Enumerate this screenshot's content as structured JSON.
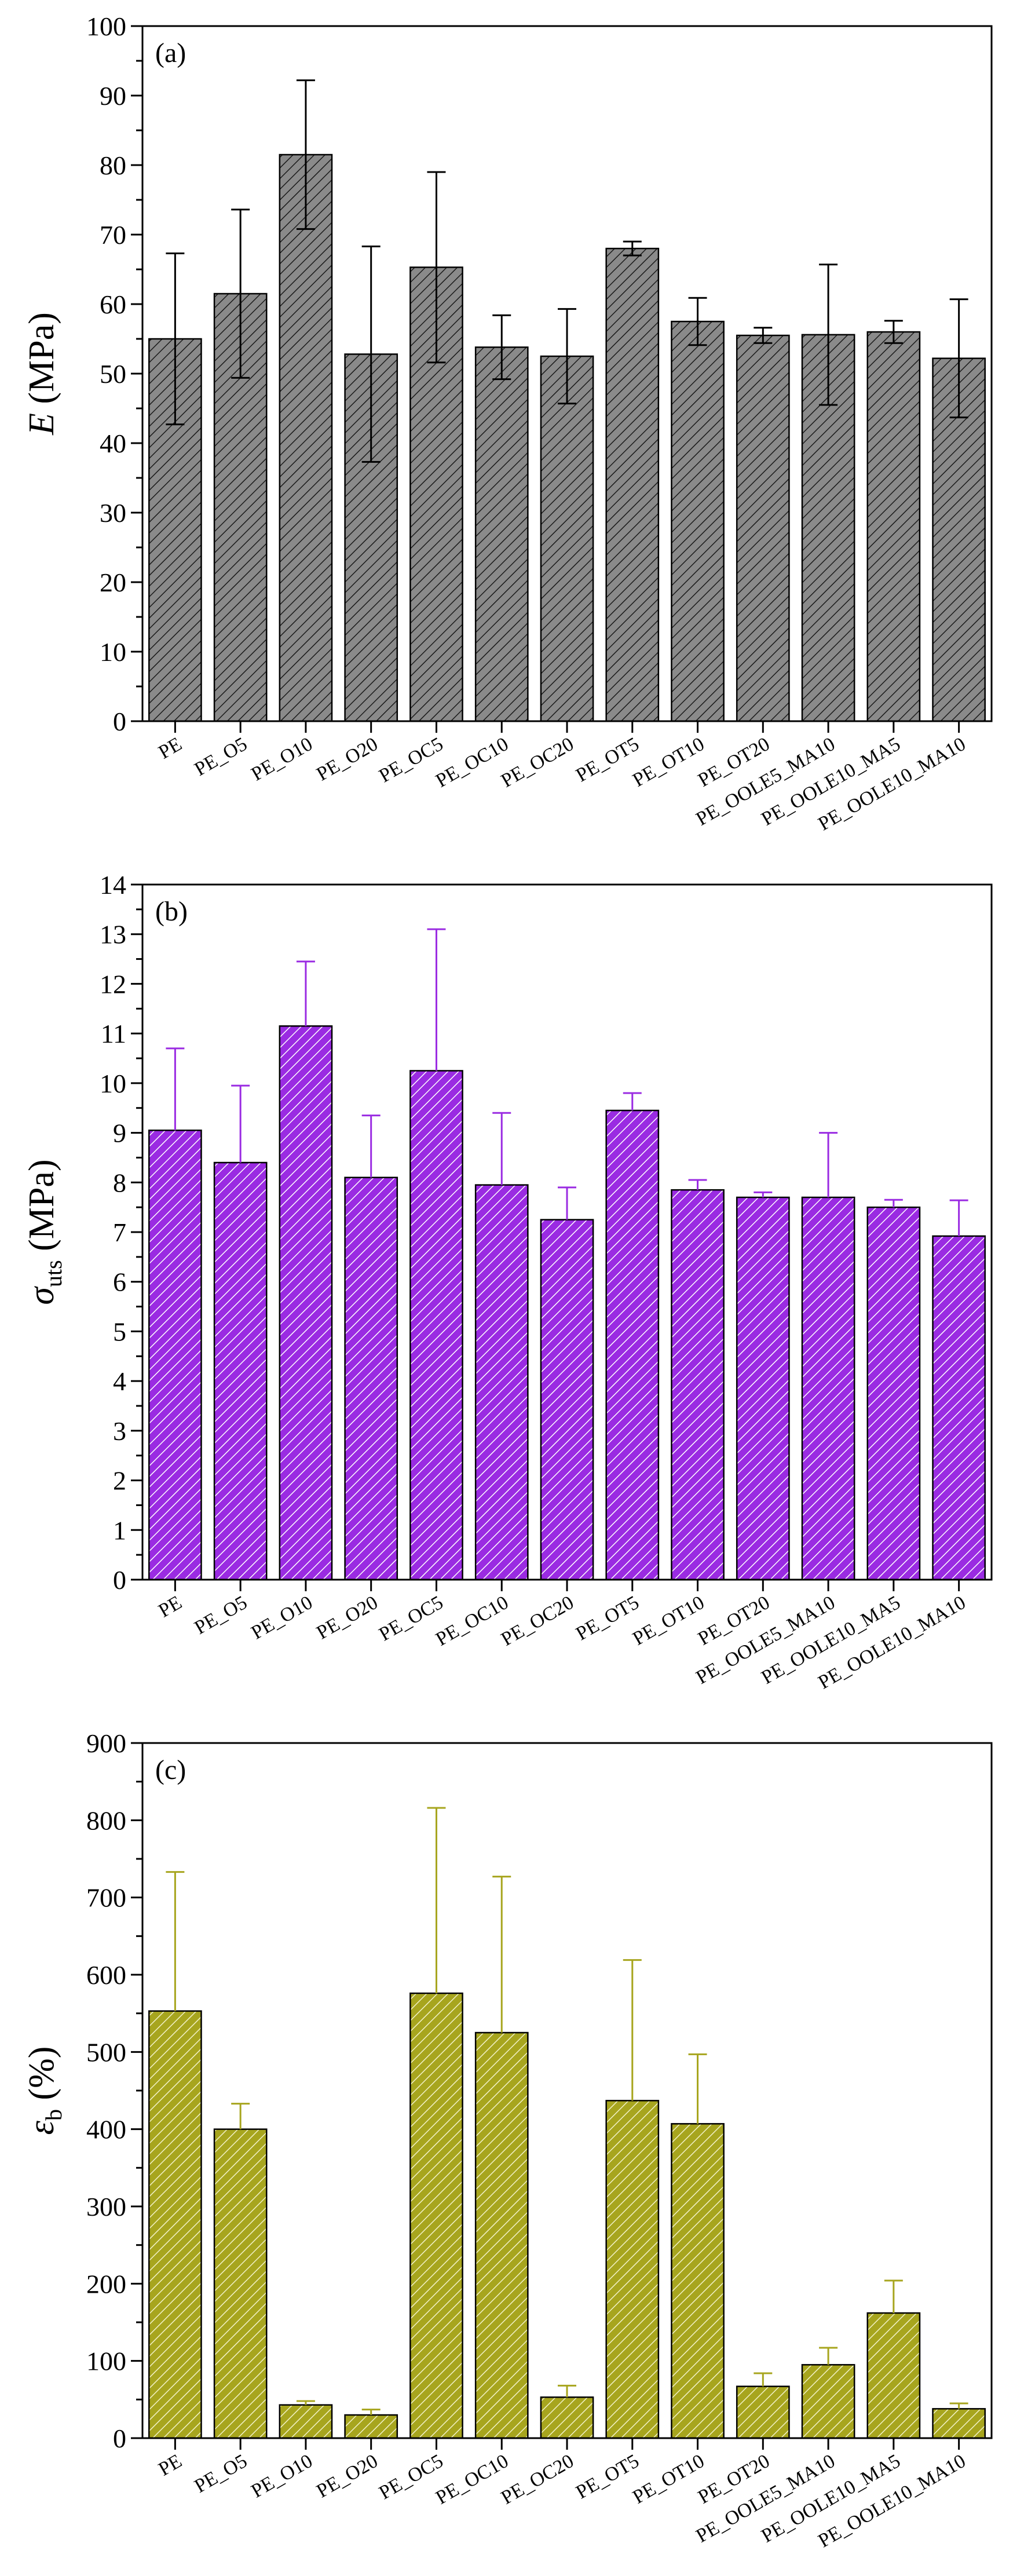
{
  "chart_data": [
    {
      "type": "bar",
      "panel_label": "(a)",
      "ylabel_symbol": "E",
      "ylabel_unit": " (MPa)",
      "categories": [
        "PE",
        "PE_O5",
        "PE_O10",
        "PE_O20",
        "PE_OC5",
        "PE_OC10",
        "PE_OC20",
        "PE_OT5",
        "PE_OT10",
        "PE_OT20",
        "PE_OOLE5_MA10",
        "PE_OOLE10_MA5",
        "PE_OOLE10_MA10"
      ],
      "values": [
        55,
        61.5,
        81.5,
        52.8,
        65.3,
        53.8,
        52.5,
        68,
        57.5,
        55.5,
        55.6,
        56,
        52.2
      ],
      "errors": [
        12.3,
        12.1,
        10.7,
        15.5,
        13.7,
        4.6,
        6.8,
        1.0,
        3.4,
        1.1,
        10.1,
        1.6,
        8.5
      ],
      "ylim": [
        0,
        100
      ],
      "yticks": [
        0,
        10,
        20,
        30,
        40,
        50,
        60,
        70,
        80,
        90,
        100
      ],
      "error_style": "symmetric",
      "bar_color": "#8a8a8a",
      "hatch_color": "#1a1a1a"
    },
    {
      "type": "bar",
      "panel_label": "(b)",
      "ylabel_symbol": "σ",
      "ylabel_sub": "uts",
      "ylabel_unit": " (MPa)",
      "categories": [
        "PE",
        "PE_O5",
        "PE_O10",
        "PE_O20",
        "PE_OC5",
        "PE_OC10",
        "PE_OC20",
        "PE_OT5",
        "PE_OT10",
        "PE_OT20",
        "PE_OOLE5_MA10",
        "PE_OOLE10_MA5",
        "PE_OOLE10_MA10"
      ],
      "values": [
        9.05,
        8.4,
        11.15,
        8.1,
        10.25,
        7.95,
        7.25,
        9.45,
        7.85,
        7.7,
        7.7,
        7.5,
        6.92
      ],
      "errors": [
        1.65,
        1.55,
        1.3,
        1.25,
        2.85,
        1.45,
        0.65,
        0.35,
        0.2,
        0.1,
        1.3,
        0.15,
        0.72
      ],
      "ylim": [
        0,
        14
      ],
      "yticks": [
        0,
        1,
        2,
        3,
        4,
        5,
        6,
        7,
        8,
        9,
        10,
        11,
        12,
        13,
        14
      ],
      "error_style": "upper",
      "bar_color": "#9a2be2",
      "hatch_color": "#ffffff"
    },
    {
      "type": "bar",
      "panel_label": "(c)",
      "ylabel_symbol": "ε",
      "ylabel_sub": "b",
      "ylabel_unit": " (%)",
      "categories": [
        "PE",
        "PE_O5",
        "PE_O10",
        "PE_O20",
        "PE_OC5",
        "PE_OC10",
        "PE_OC20",
        "PE_OT5",
        "PE_OT10",
        "PE_OT20",
        "PE_OOLE5_MA10",
        "PE_OOLE10_MA5",
        "PE_OOLE10_MA10"
      ],
      "values": [
        553,
        400,
        43,
        30,
        576,
        525,
        53,
        437,
        407,
        67,
        95,
        162,
        38
      ],
      "errors": [
        180,
        33,
        5,
        7,
        240,
        202,
        15,
        182,
        90,
        17,
        22,
        42,
        7
      ],
      "ylim": [
        0,
        900
      ],
      "yticks": [
        0,
        100,
        200,
        300,
        400,
        500,
        600,
        700,
        800,
        900
      ],
      "error_style": "upper",
      "bar_color": "#a7a51e",
      "hatch_color": "#f2f2c8"
    }
  ]
}
